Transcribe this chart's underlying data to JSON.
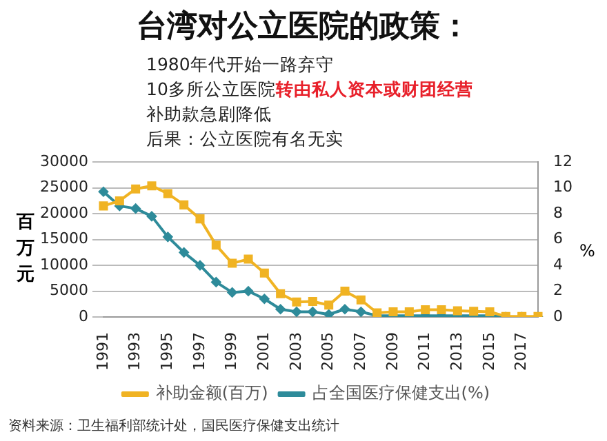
{
  "chart_data": {
    "type": "line",
    "title": "台湾对公立医院的政策：",
    "annotations": [
      "1980年代开始一路弃守",
      "10多所公立医院",
      "转由私人资本或财团经营",
      "补助款急剧降低",
      "后果：公立医院有名无实",
      "资料来源：卫生福利部统计处，国民医疗保健支出统计"
    ],
    "categories": [
      "1991",
      null,
      "1993",
      null,
      "1995",
      null,
      "1997",
      null,
      "1999",
      null,
      "2001",
      null,
      "2003",
      null,
      "2005",
      null,
      "2007",
      null,
      "2009",
      null,
      "2011",
      null,
      "2013",
      null,
      "2015",
      null,
      "2017",
      null
    ],
    "series": [
      {
        "name": "补助金额(百万)",
        "color": "#f0b323",
        "marker": "square",
        "values": [
          21500,
          22500,
          24800,
          25400,
          23900,
          21700,
          19000,
          13900,
          10400,
          11200,
          8500,
          4500,
          2900,
          3000,
          2300,
          5000,
          3300,
          800,
          1000,
          1000,
          1400,
          1400,
          1200,
          1100,
          1000,
          100,
          100,
          100
        ]
      },
      {
        "name": "占全国医疗保健支出(%)",
        "color": "#2e8b9a",
        "marker": "diamond",
        "axis": "y2",
        "values": [
          9.7,
          8.6,
          8.4,
          7.8,
          6.2,
          5.0,
          4.0,
          2.7,
          1.9,
          2.0,
          1.4,
          0.6,
          0.4,
          0.4,
          0.2,
          0.6,
          0.4,
          0.1,
          0.1,
          0.1,
          0.1,
          0.1,
          0.1,
          0.1,
          0.1,
          0,
          0,
          0
        ]
      }
    ],
    "ylabel": "百万元",
    "y2label": "%",
    "ylim": [
      0,
      30000
    ],
    "yticks": [
      0,
      5000,
      10000,
      15000,
      20000,
      25000,
      30000
    ],
    "y2lim": [
      0,
      12
    ],
    "y2ticks": [
      0,
      2,
      4,
      6,
      8,
      10,
      12
    ],
    "grid": "y",
    "legend": "bottom"
  }
}
